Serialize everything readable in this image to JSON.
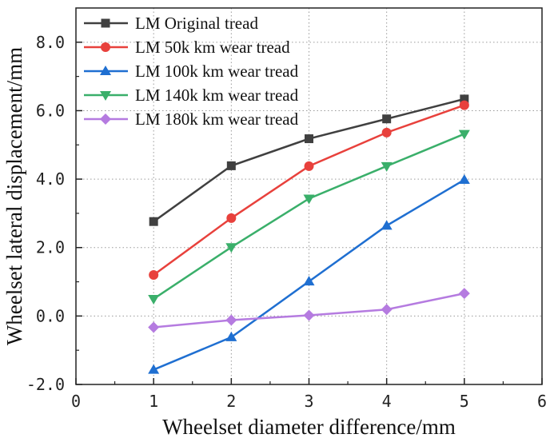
{
  "chart_data": {
    "type": "line",
    "title": "",
    "xlabel": "Wheelset diameter difference/mm",
    "ylabel": "Wheelset lateral displacement/mm",
    "xlim": [
      0,
      6
    ],
    "ylim": [
      -2,
      9
    ],
    "x_ticks": [
      0,
      1,
      2,
      3,
      4,
      5,
      6
    ],
    "x_tick_labels": [
      "0",
      "1",
      "2",
      "3",
      "4",
      "5",
      "6"
    ],
    "y_ticks": [
      -2,
      0,
      2,
      4,
      6,
      8
    ],
    "y_tick_labels": [
      "-2.0",
      "0.0",
      "2.0",
      "4.0",
      "6.0",
      "8.0"
    ],
    "grid": true,
    "legend_position": "top-left",
    "x": [
      1,
      2,
      3,
      4,
      5
    ],
    "series": [
      {
        "name": "LM Original tread",
        "color": "#404040",
        "marker": "square",
        "values": [
          2.76,
          4.39,
          5.18,
          5.76,
          6.34
        ]
      },
      {
        "name": "LM 50k km wear tread",
        "color": "#e8413c",
        "marker": "circle",
        "values": [
          1.2,
          2.86,
          4.38,
          5.36,
          6.16
        ]
      },
      {
        "name": "LM 100k km wear tread",
        "color": "#1f6fd1",
        "marker": "triangle-up",
        "values": [
          -1.57,
          -0.62,
          1.01,
          2.64,
          3.98
        ]
      },
      {
        "name": "LM 140k km wear tread",
        "color": "#3aaf6a",
        "marker": "triangle-down",
        "values": [
          0.5,
          2.01,
          3.43,
          4.38,
          5.32
        ]
      },
      {
        "name": "LM 180k km wear tread",
        "color": "#b57be0",
        "marker": "diamond",
        "values": [
          -0.33,
          -0.12,
          0.02,
          0.19,
          0.66
        ]
      }
    ]
  }
}
